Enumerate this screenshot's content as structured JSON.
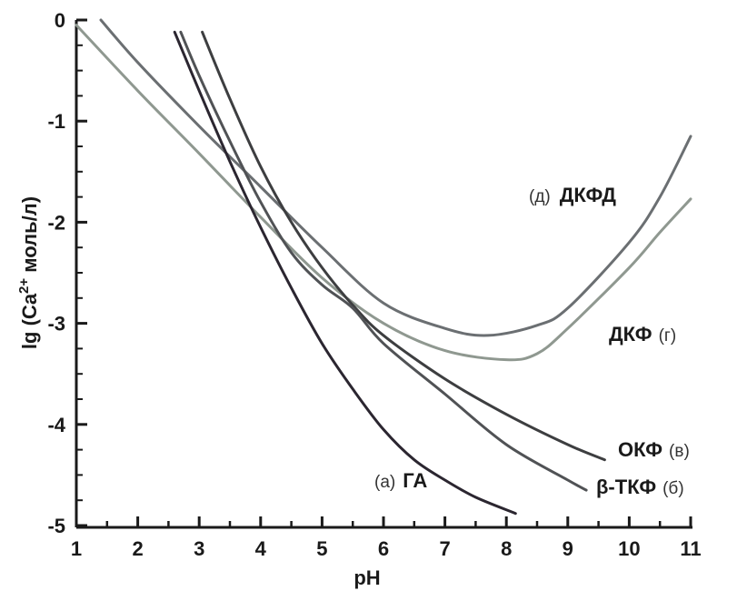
{
  "chart_data": {
    "type": "line",
    "xlabel": "pH",
    "ylabel": {
      "prefix": "lg (Ca",
      "superscript": "2+",
      "suffix": " моль/л)"
    },
    "xlim": [
      1,
      11
    ],
    "ylim": [
      -5,
      0
    ],
    "xticks": [
      1,
      2,
      3,
      4,
      5,
      6,
      7,
      8,
      9,
      10,
      11
    ],
    "yticks": [
      0,
      -1,
      -2,
      -3,
      -4,
      -5
    ],
    "grid": false,
    "series": [
      {
        "name": "ДКФД",
        "letter": "(д)",
        "label_side": "before",
        "color": "#6b6f72",
        "points": [
          [
            1.4,
            0.0
          ],
          [
            2,
            -0.42
          ],
          [
            3,
            -1.05
          ],
          [
            4,
            -1.65
          ],
          [
            5,
            -2.25
          ],
          [
            6,
            -2.8
          ],
          [
            7,
            -3.05
          ],
          [
            7.7,
            -3.12
          ],
          [
            8.5,
            -3.02
          ],
          [
            9,
            -2.85
          ],
          [
            10,
            -2.2
          ],
          [
            10.5,
            -1.75
          ],
          [
            11,
            -1.15
          ]
        ]
      },
      {
        "name": "ДКФ",
        "letter": "(г)",
        "label_side": "after",
        "color": "#8f9890",
        "points": [
          [
            1,
            -0.05
          ],
          [
            2,
            -0.7
          ],
          [
            3,
            -1.32
          ],
          [
            4,
            -1.95
          ],
          [
            5,
            -2.55
          ],
          [
            6,
            -3.0
          ],
          [
            7,
            -3.27
          ],
          [
            8,
            -3.36
          ],
          [
            8.5,
            -3.3
          ],
          [
            9,
            -3.05
          ],
          [
            10,
            -2.45
          ],
          [
            10.5,
            -2.1
          ],
          [
            11,
            -1.77
          ]
        ]
      },
      {
        "name": "ОКФ",
        "letter": "(в)",
        "label_side": "after",
        "color": "#3d3e40",
        "points": [
          [
            3.05,
            -0.12
          ],
          [
            3.5,
            -0.78
          ],
          [
            4,
            -1.45
          ],
          [
            4.5,
            -2.0
          ],
          [
            5,
            -2.45
          ],
          [
            5.5,
            -2.82
          ],
          [
            6,
            -3.12
          ],
          [
            7,
            -3.55
          ],
          [
            8,
            -3.9
          ],
          [
            9,
            -4.2
          ],
          [
            9.6,
            -4.35
          ]
        ]
      },
      {
        "name": "β-ТКФ",
        "letter": "(б)",
        "label_side": "after",
        "color": "#505255",
        "points": [
          [
            2.7,
            -0.12
          ],
          [
            3,
            -0.55
          ],
          [
            3.5,
            -1.2
          ],
          [
            4,
            -1.8
          ],
          [
            4.5,
            -2.3
          ],
          [
            5,
            -2.62
          ],
          [
            5.5,
            -2.85
          ],
          [
            6,
            -3.2
          ],
          [
            7,
            -3.7
          ],
          [
            8,
            -4.2
          ],
          [
            9,
            -4.55
          ],
          [
            9.3,
            -4.65
          ]
        ]
      },
      {
        "name": "ГА",
        "letter": "(а)",
        "label_side": "before",
        "color": "#2b2630",
        "points": [
          [
            2.6,
            -0.12
          ],
          [
            3,
            -0.7
          ],
          [
            3.5,
            -1.4
          ],
          [
            4,
            -2.05
          ],
          [
            4.5,
            -2.65
          ],
          [
            5,
            -3.2
          ],
          [
            5.5,
            -3.65
          ],
          [
            6,
            -4.05
          ],
          [
            6.5,
            -4.35
          ],
          [
            7,
            -4.55
          ],
          [
            7.5,
            -4.72
          ],
          [
            8.15,
            -4.88
          ]
        ]
      }
    ]
  }
}
